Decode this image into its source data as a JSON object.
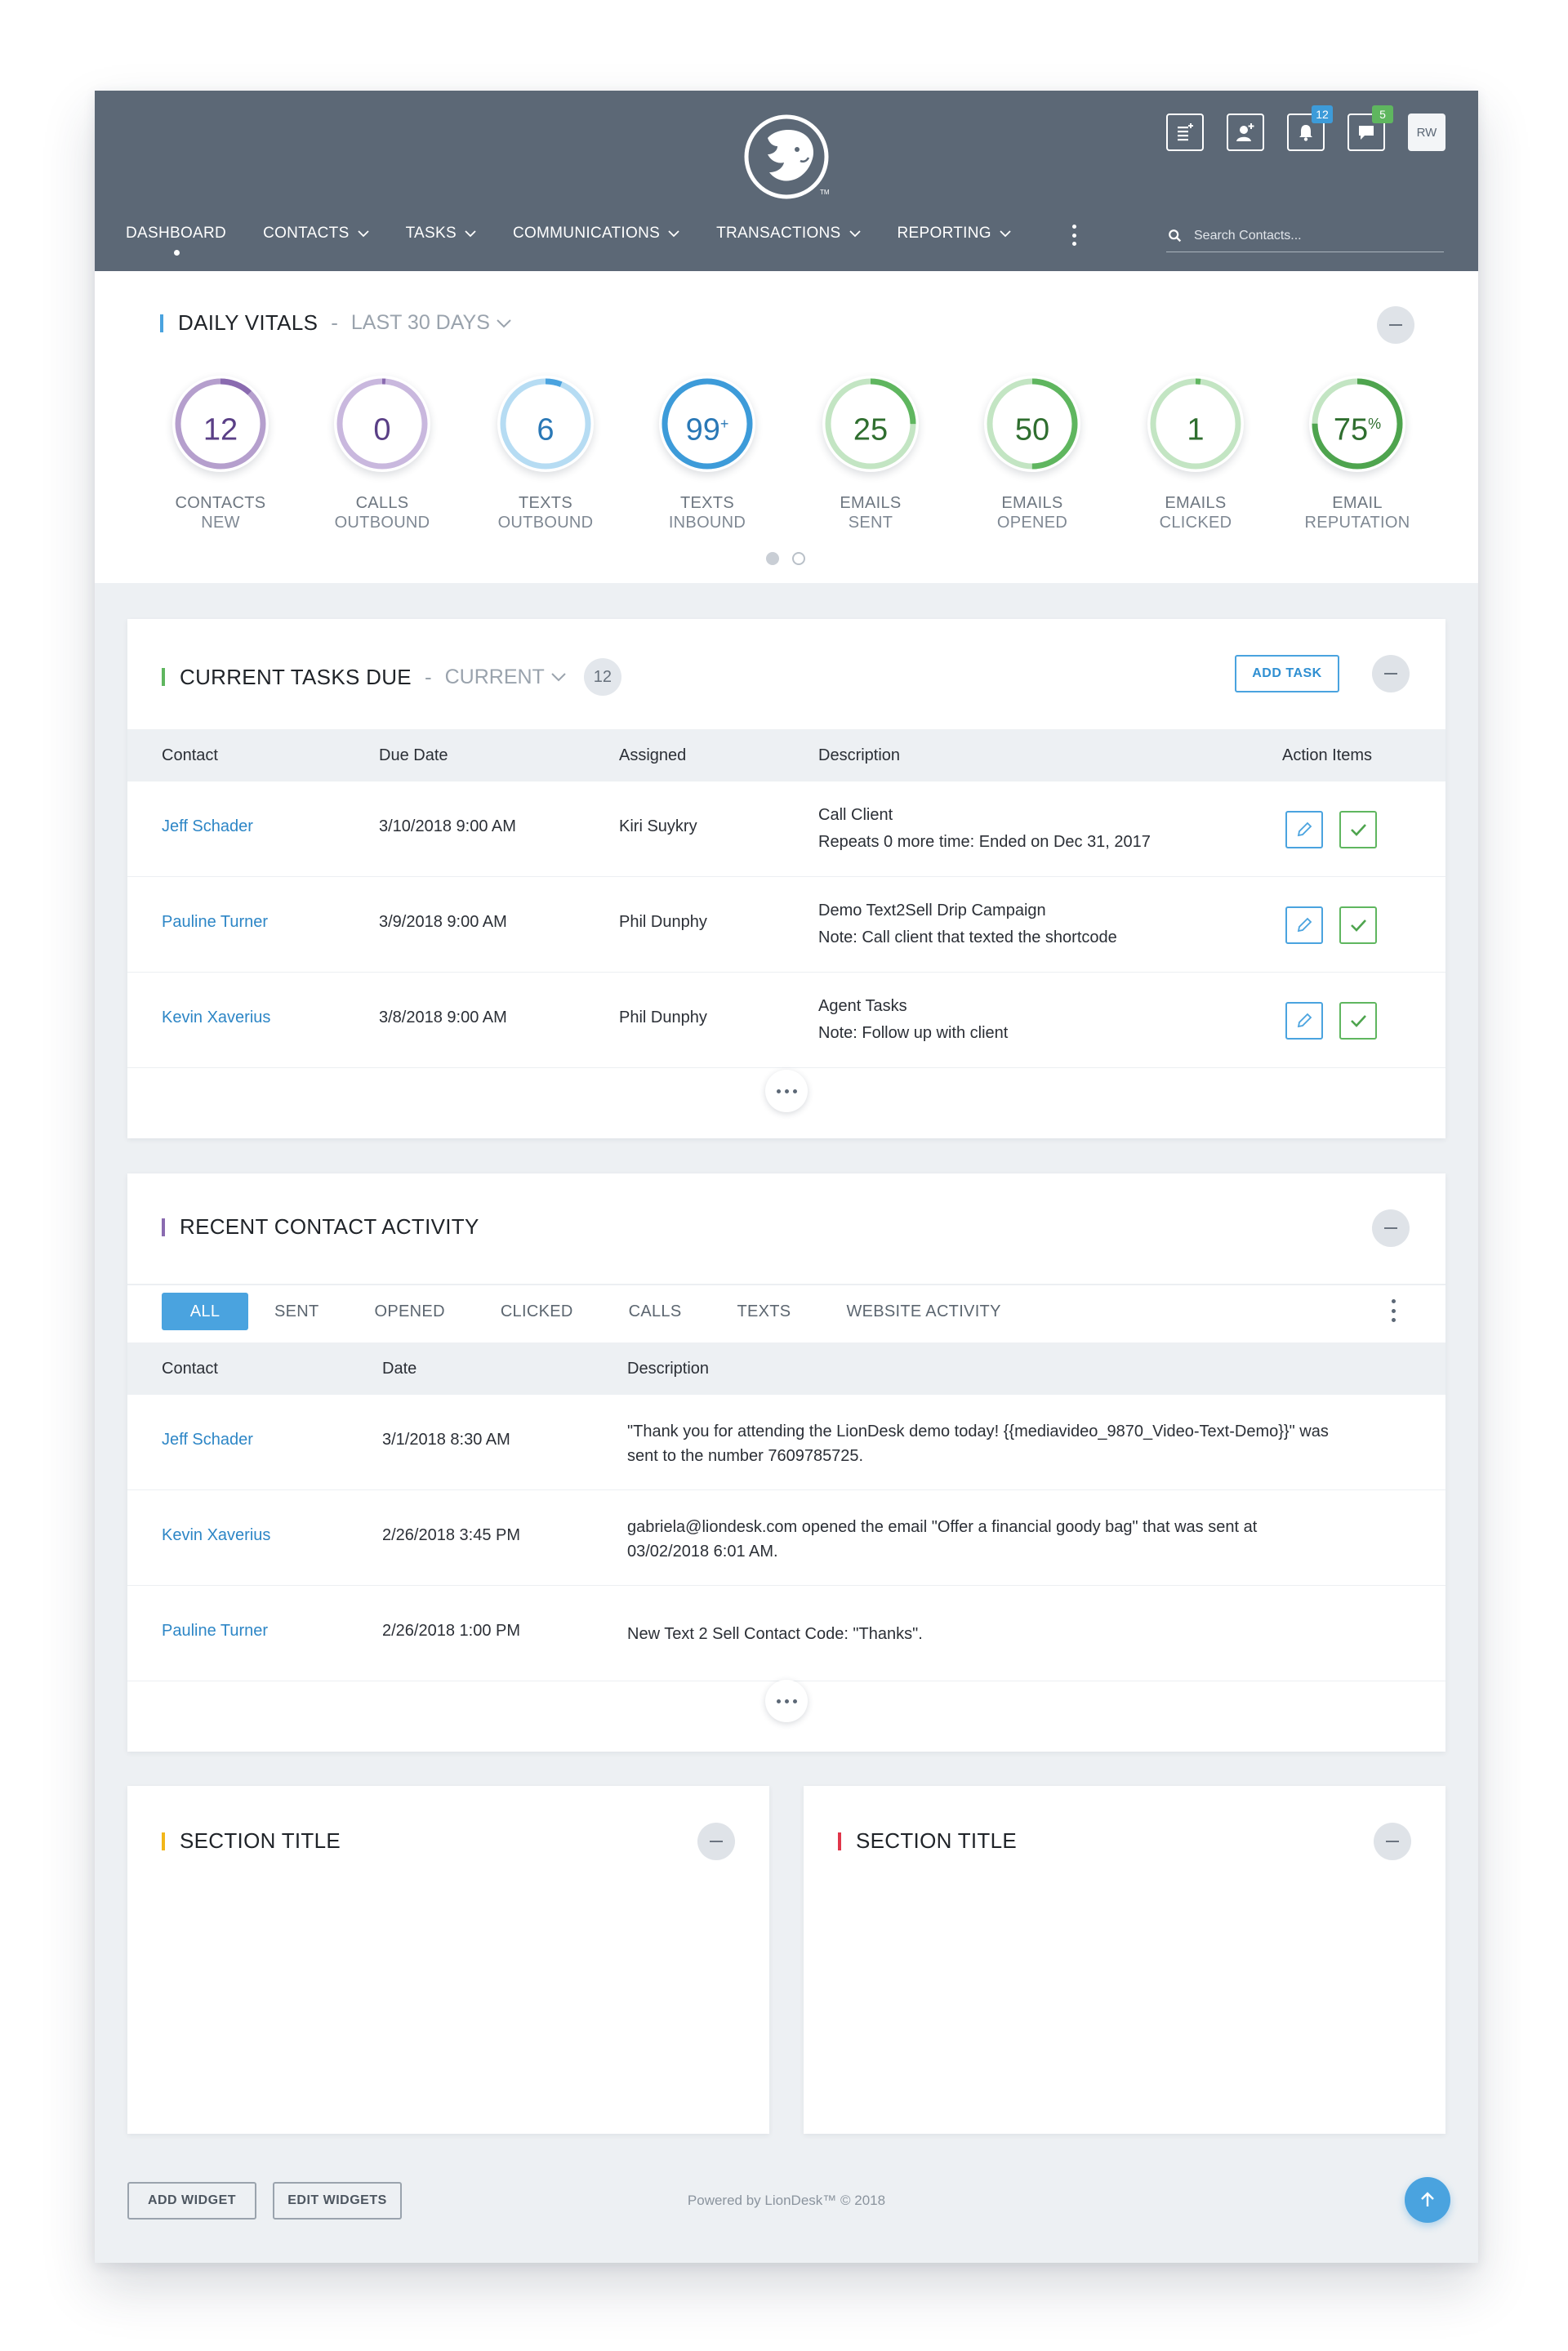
{
  "header": {
    "notifications_count": "12",
    "messages_count": "5",
    "avatar_initials": "RW",
    "logo_mark": "TM",
    "search_placeholder": "Search Contacts...",
    "nav": [
      {
        "label": "DASHBOARD",
        "active": true,
        "dropdown": false
      },
      {
        "label": "CONTACTS",
        "active": false,
        "dropdown": true
      },
      {
        "label": "TASKS",
        "active": false,
        "dropdown": true
      },
      {
        "label": "COMMUNICATIONS",
        "active": false,
        "dropdown": true
      },
      {
        "label": "TRANSACTIONS",
        "active": false,
        "dropdown": true
      },
      {
        "label": "REPORTING",
        "active": false,
        "dropdown": true
      }
    ],
    "icons": [
      "tasks-list-icon",
      "add-contact-icon",
      "bell-icon",
      "chat-icon"
    ]
  },
  "vitals": {
    "title": "DAILY VITALS",
    "separator": "-",
    "filter": "LAST 30 DAYS",
    "carousel_page": 1,
    "carousel_pages": 2,
    "items": [
      {
        "value": "12",
        "suffix": "",
        "line1": "CONTACTS",
        "line2": "NEW",
        "ring_color": "#b59fcd",
        "arc_color": "#8a6bb0",
        "text_color": "#5a3f86",
        "fraction": 0.12
      },
      {
        "value": "0",
        "suffix": "",
        "line1": "CALLS",
        "line2": "OUTBOUND",
        "ring_color": "#c9b8de",
        "arc_color": "#8a6bb0",
        "text_color": "#5a3f86",
        "fraction": 0.0
      },
      {
        "value": "6",
        "suffix": "",
        "line1": "TEXTS",
        "line2": "OUTBOUND",
        "ring_color": "#b6dcf3",
        "arc_color": "#4aa3df",
        "text_color": "#2a78b6",
        "fraction": 0.06
      },
      {
        "value": "99",
        "suffix": "+",
        "line1": "TEXTS",
        "line2": "INBOUND",
        "ring_color": "#b6dcf3",
        "arc_color": "#3d9bd9",
        "text_color": "#2a78b6",
        "fraction": 1.0
      },
      {
        "value": "25",
        "suffix": "",
        "line1": "EMAILS",
        "line2": "SENT",
        "ring_color": "#c3e5c3",
        "arc_color": "#5fb65f",
        "text_color": "#2f6e2f",
        "fraction": 0.25
      },
      {
        "value": "50",
        "suffix": "",
        "line1": "EMAILS",
        "line2": "OPENED",
        "ring_color": "#c3e5c3",
        "arc_color": "#5fb65f",
        "text_color": "#2f6e2f",
        "fraction": 0.5
      },
      {
        "value": "1",
        "suffix": "",
        "line1": "EMAILS",
        "line2": "CLICKED",
        "ring_color": "#c3e5c3",
        "arc_color": "#5fb65f",
        "text_color": "#2f6e2f",
        "fraction": 0.01
      },
      {
        "value": "75",
        "suffix": "%",
        "line1": "EMAIL",
        "line2": "REPUTATION",
        "ring_color": "#c3e5c3",
        "arc_color": "#4ea44e",
        "text_color": "#2f6e2f",
        "fraction": 0.75
      }
    ]
  },
  "tasks": {
    "title": "CURRENT TASKS DUE",
    "separator": "-",
    "filter": "CURRENT",
    "count": "12",
    "add_label": "ADD TASK",
    "columns": [
      "Contact",
      "Due Date",
      "Assigned",
      "Description",
      "Action Items"
    ],
    "rows": [
      {
        "contact": "Jeff Schader",
        "due": "3/10/2018  9:00 AM",
        "assigned": "Kiri Suykry",
        "desc_title": "Call Client",
        "desc_note": "Repeats 0 more time: Ended on Dec 31, 2017"
      },
      {
        "contact": "Pauline Turner",
        "due": "3/9/2018  9:00 AM",
        "assigned": "Phil Dunphy",
        "desc_title": "Demo Text2Sell Drip Campaign",
        "desc_note": "Note: Call client that texted the shortcode"
      },
      {
        "contact": "Kevin Xaverius",
        "due": "3/8/2018  9:00 AM",
        "assigned": "Phil Dunphy",
        "desc_title": "Agent Tasks",
        "desc_note": "Note: Follow up with client"
      }
    ]
  },
  "activity": {
    "title": "RECENT CONTACT ACTIVITY",
    "tabs": [
      "ALL",
      "SENT",
      "OPENED",
      "CLICKED",
      "CALLS",
      "TEXTS",
      "WEBSITE ACTIVITY"
    ],
    "active_tab": "ALL",
    "columns": [
      "Contact",
      "Date",
      "Description"
    ],
    "rows": [
      {
        "contact": "Jeff Schader",
        "date": "3/1/2018  8:30 AM",
        "line1": "\"Thank you for attending the LionDesk demo today! {{mediavideo_9870_Video-Text-Demo}}\" was",
        "line2": "sent to the number 7609785725."
      },
      {
        "contact": "Kevin Xaverius",
        "date": "2/26/2018  3:45 PM",
        "line1": "gabriela@liondesk.com opened the email \"Offer a financial goody bag\" that was sent at",
        "line2": "03/02/2018 6:01 AM."
      },
      {
        "contact": "Pauline Turner",
        "date": "2/26/2018  1:00 PM",
        "line1": "New Text 2 Sell Contact Code: \"Thanks\".",
        "line2": ""
      }
    ]
  },
  "sections": [
    {
      "title": "SECTION TITLE",
      "accent": "#f2b619"
    },
    {
      "title": "SECTION TITLE",
      "accent": "#e0364a"
    }
  ],
  "footer": {
    "add_widget": "ADD WIDGET",
    "edit_widgets": "EDIT WIDGETS",
    "powered_by": "Powered by LionDesk™ © 2018"
  },
  "colors": {
    "header_bg": "#5c6876",
    "accent_blue": "#4aa3df",
    "link_blue": "#2d86c6",
    "vitals_accent": "#4aa3df",
    "tasks_accent": "#5fb65f",
    "activity_accent": "#8a6bb0",
    "badge_blue": "#3d9bd9",
    "badge_green": "#5fb65f"
  }
}
